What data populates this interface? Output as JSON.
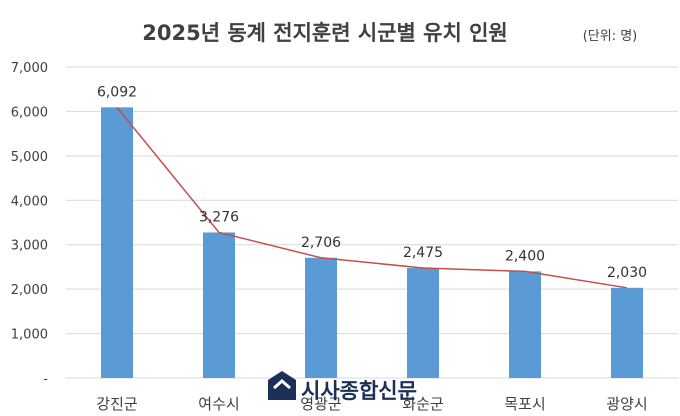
{
  "chart_data": {
    "type": "bar",
    "title": "2025년 동계 전지훈련 시군별 유치 인원",
    "unit_note": "(단위: 명)",
    "categories": [
      "강진군",
      "여수시",
      "영광군",
      "화순군",
      "목포시",
      "광양시"
    ],
    "values": [
      6092,
      3276,
      2706,
      2475,
      2400,
      2030
    ],
    "data_labels": [
      "6,092",
      "3,276",
      "2,706",
      "2,475",
      "2,400",
      "2,030"
    ],
    "ylim": [
      0,
      7000
    ],
    "yticks": [
      "-",
      "1,000",
      "2,000",
      "3,000",
      "4,000",
      "5,000",
      "6,000",
      "7,000"
    ],
    "grid": true,
    "overlay_line": true,
    "colors": {
      "bar": "#5b9bd5",
      "line": "#c0504d",
      "grid": "#d9d9d9"
    }
  },
  "watermark": {
    "text": "시사종합신문",
    "logo_icon": "sisa-logo-icon"
  }
}
